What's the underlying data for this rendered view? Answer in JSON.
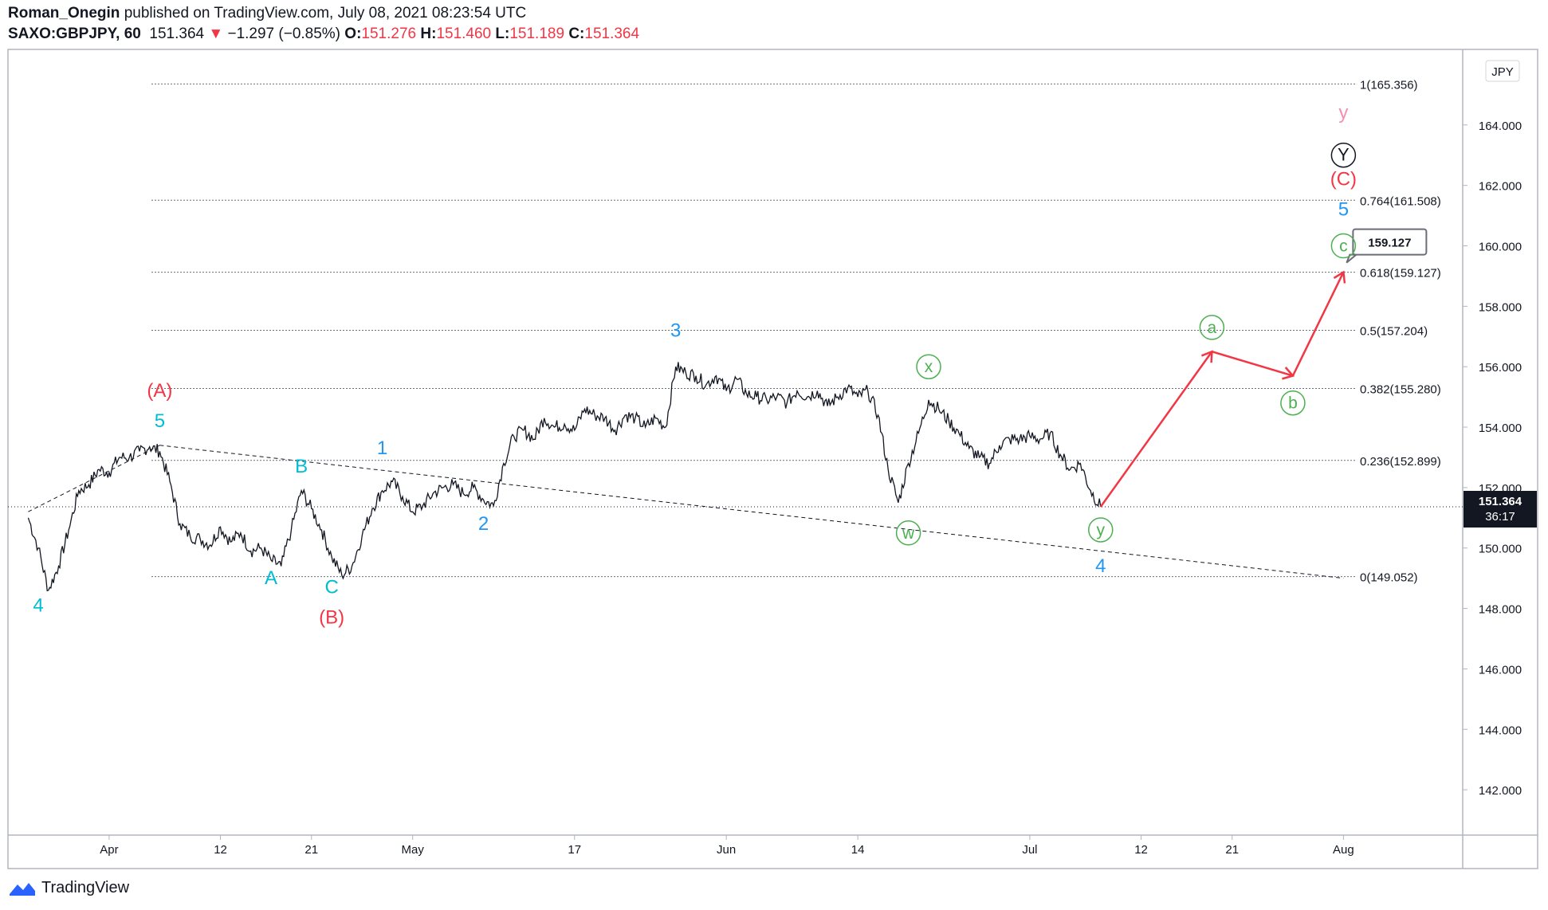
{
  "header": {
    "author": "Roman_Onegin",
    "published_text": "published on TradingView.com, July 08, 2021 08:23:54 UTC",
    "symbol": "SAXO:GBPJPY, 60",
    "last": "151.364",
    "change_arrow": "▼",
    "change": "−1.297 (−0.85%)",
    "o_label": "O:",
    "o_value": "151.276",
    "h_label": "H:",
    "h_value": "151.460",
    "l_label": "L:",
    "l_value": "151.189",
    "c_label": "C:",
    "c_value": "151.364"
  },
  "footer": {
    "brand": "TradingView"
  },
  "colors": {
    "red": "#f23645",
    "blue": "#2196f3",
    "teal": "#00bcd4",
    "green": "#4caf50",
    "pink": "#f48fb1",
    "price": "#131722"
  },
  "chart_data": {
    "type": "line",
    "currency": "JPY",
    "ylim": [
      140.5,
      166.5
    ],
    "yticks": [
      "142.000",
      "144.000",
      "146.000",
      "148.000",
      "150.000",
      "152.000",
      "154.000",
      "156.000",
      "158.000",
      "160.000",
      "162.000",
      "164.000"
    ],
    "xticks": [
      "Apr",
      "12",
      "21",
      "May",
      "17",
      "Jun",
      "14",
      "Jul",
      "12",
      "21",
      "Aug"
    ],
    "last_price_label": "151.364",
    "countdown_label": "36:17",
    "price_path": [
      [
        "2021-03-24",
        151.0
      ],
      [
        "2021-03-25",
        150.0
      ],
      [
        "2021-03-26",
        148.6
      ],
      [
        "2021-03-27",
        149.4
      ],
      [
        "2021-03-28",
        150.6
      ],
      [
        "2021-03-29",
        151.9
      ],
      [
        "2021-03-30",
        152.1
      ],
      [
        "2021-03-31",
        152.6
      ],
      [
        "2021-04-01",
        152.5
      ],
      [
        "2021-04-02",
        153.0
      ],
      [
        "2021-04-03",
        153.0
      ],
      [
        "2021-04-04",
        153.2
      ],
      [
        "2021-04-05",
        153.35
      ],
      [
        "2021-04-06",
        153.2
      ],
      [
        "2021-04-07",
        152.2
      ],
      [
        "2021-04-08",
        150.8
      ],
      [
        "2021-04-09",
        150.4
      ],
      [
        "2021-04-10",
        150.3
      ],
      [
        "2021-04-11",
        150.1
      ],
      [
        "2021-04-12",
        150.7
      ],
      [
        "2021-04-13",
        150.2
      ],
      [
        "2021-04-14",
        150.5
      ],
      [
        "2021-04-15",
        149.9
      ],
      [
        "2021-04-16",
        150.0
      ],
      [
        "2021-04-17",
        149.6
      ],
      [
        "2021-04-18",
        149.4
      ],
      [
        "2021-04-19",
        150.6
      ],
      [
        "2021-04-20",
        151.9
      ],
      [
        "2021-04-21",
        151.3
      ],
      [
        "2021-04-22",
        150.6
      ],
      [
        "2021-04-23",
        149.7
      ],
      [
        "2021-04-24",
        149.1
      ],
      [
        "2021-04-25",
        149.4
      ],
      [
        "2021-04-26",
        150.4
      ],
      [
        "2021-04-27",
        151.3
      ],
      [
        "2021-04-28",
        151.9
      ],
      [
        "2021-04-29",
        152.2
      ],
      [
        "2021-04-30",
        151.7
      ],
      [
        "2021-05-01",
        151.2
      ],
      [
        "2021-05-02",
        151.4
      ],
      [
        "2021-05-03",
        151.8
      ],
      [
        "2021-05-04",
        152.0
      ],
      [
        "2021-05-05",
        152.1
      ],
      [
        "2021-05-06",
        151.8
      ],
      [
        "2021-05-07",
        152.0
      ],
      [
        "2021-05-08",
        151.6
      ],
      [
        "2021-05-09",
        151.4
      ],
      [
        "2021-05-10",
        152.8
      ],
      [
        "2021-05-11",
        153.7
      ],
      [
        "2021-05-12",
        153.9
      ],
      [
        "2021-05-13",
        153.6
      ],
      [
        "2021-05-14",
        154.3
      ],
      [
        "2021-05-15",
        154.0
      ],
      [
        "2021-05-16",
        154.1
      ],
      [
        "2021-05-17",
        153.9
      ],
      [
        "2021-05-18",
        154.6
      ],
      [
        "2021-05-19",
        154.4
      ],
      [
        "2021-05-20",
        154.3
      ],
      [
        "2021-05-21",
        153.9
      ],
      [
        "2021-05-22",
        154.4
      ],
      [
        "2021-05-23",
        154.3
      ],
      [
        "2021-05-24",
        154.0
      ],
      [
        "2021-05-25",
        154.3
      ],
      [
        "2021-05-26",
        154.0
      ],
      [
        "2021-05-27",
        156.0
      ],
      [
        "2021-05-28",
        155.8
      ],
      [
        "2021-05-29",
        155.7
      ],
      [
        "2021-05-30",
        155.4
      ],
      [
        "2021-05-31",
        155.7
      ],
      [
        "2021-06-01",
        155.2
      ],
      [
        "2021-06-02",
        155.6
      ],
      [
        "2021-06-03",
        155.1
      ],
      [
        "2021-06-04",
        155.0
      ],
      [
        "2021-06-05",
        154.9
      ],
      [
        "2021-06-06",
        155.0
      ],
      [
        "2021-06-07",
        154.8
      ],
      [
        "2021-06-08",
        155.2
      ],
      [
        "2021-06-09",
        155.0
      ],
      [
        "2021-06-10",
        155.2
      ],
      [
        "2021-06-11",
        154.7
      ],
      [
        "2021-06-12",
        155.0
      ],
      [
        "2021-06-13",
        155.3
      ],
      [
        "2021-06-14",
        155.0
      ],
      [
        "2021-06-15",
        155.2
      ],
      [
        "2021-06-16",
        154.4
      ],
      [
        "2021-06-17",
        152.6
      ],
      [
        "2021-06-18",
        151.5
      ],
      [
        "2021-06-19",
        152.8
      ],
      [
        "2021-06-20",
        153.8
      ],
      [
        "2021-06-21",
        154.9
      ],
      [
        "2021-06-22",
        154.6
      ],
      [
        "2021-06-23",
        154.2
      ],
      [
        "2021-06-24",
        153.8
      ],
      [
        "2021-06-25",
        153.3
      ],
      [
        "2021-06-26",
        153.0
      ],
      [
        "2021-06-27",
        152.8
      ],
      [
        "2021-06-28",
        153.4
      ],
      [
        "2021-06-29",
        153.6
      ],
      [
        "2021-06-30",
        153.6
      ],
      [
        "2021-07-01",
        153.7
      ],
      [
        "2021-07-02",
        153.6
      ],
      [
        "2021-07-03",
        153.8
      ],
      [
        "2021-07-04",
        153.1
      ],
      [
        "2021-07-05",
        152.6
      ],
      [
        "2021-07-06",
        152.8
      ],
      [
        "2021-07-07",
        151.9
      ],
      [
        "2021-07-08",
        151.364
      ]
    ],
    "projection": [
      [
        "2021-07-08",
        151.364
      ],
      [
        "2021-07-19",
        156.5
      ],
      [
        "2021-07-27",
        155.7
      ],
      [
        "2021-08-01",
        159.127
      ]
    ],
    "projection_label": "159.127",
    "trendlines": [
      {
        "from": [
          "2021-03-24",
          151.2
        ],
        "to": [
          "2021-04-06",
          153.4
        ]
      },
      {
        "from": [
          "2021-04-06",
          153.4
        ],
        "to": [
          "2021-08-01",
          149.0
        ]
      }
    ],
    "fib_levels": [
      {
        "label": "1(165.356)",
        "value": 165.356
      },
      {
        "label": "0.764(161.508)",
        "value": 161.508
      },
      {
        "label": "0.618(159.127)",
        "value": 159.127
      },
      {
        "label": "0.5(157.204)",
        "value": 157.204
      },
      {
        "label": "0.382(155.280)",
        "value": 155.28
      },
      {
        "label": "0.236(152.899)",
        "value": 152.899
      },
      {
        "label": "0(149.052)",
        "value": 149.052
      }
    ],
    "wave_labels": [
      {
        "text": "4",
        "date": "2021-03-25",
        "price": 147.9,
        "color": "teal"
      },
      {
        "text": "(A)",
        "date": "2021-04-06",
        "price": 155.0,
        "color": "red"
      },
      {
        "text": "5",
        "date": "2021-04-06",
        "price": 154.0,
        "color": "teal"
      },
      {
        "text": "B",
        "date": "2021-04-20",
        "price": 152.5,
        "color": "teal"
      },
      {
        "text": "A",
        "date": "2021-04-17",
        "price": 148.8,
        "color": "teal"
      },
      {
        "text": "C",
        "date": "2021-04-23",
        "price": 148.5,
        "color": "teal"
      },
      {
        "text": "(B)",
        "date": "2021-04-23",
        "price": 147.5,
        "color": "red"
      },
      {
        "text": "1",
        "date": "2021-04-28",
        "price": 153.1,
        "color": "blue"
      },
      {
        "text": "2",
        "date": "2021-05-08",
        "price": 150.6,
        "color": "blue"
      },
      {
        "text": "3",
        "date": "2021-05-27",
        "price": 157.0,
        "color": "blue"
      },
      {
        "text": "4",
        "date": "2021-07-08",
        "price": 149.2,
        "color": "blue"
      },
      {
        "text": "5",
        "date": "2021-08-01",
        "price": 161.0,
        "color": "blue"
      },
      {
        "text": "(C)",
        "date": "2021-08-01",
        "price": 162.0,
        "color": "red"
      },
      {
        "text": "y",
        "date": "2021-08-01",
        "price": 164.2,
        "color": "pink"
      }
    ],
    "circled_labels": [
      {
        "text": "x",
        "date": "2021-06-21",
        "price": 156.0,
        "color": "green"
      },
      {
        "text": "w",
        "date": "2021-06-19",
        "price": 150.5,
        "color": "green"
      },
      {
        "text": "y",
        "date": "2021-07-08",
        "price": 150.6,
        "color": "green"
      },
      {
        "text": "a",
        "date": "2021-07-19",
        "price": 157.3,
        "color": "green"
      },
      {
        "text": "b",
        "date": "2021-07-27",
        "price": 154.8,
        "color": "green"
      },
      {
        "text": "c",
        "date": "2021-08-01",
        "price": 160.0,
        "color": "green"
      },
      {
        "text": "Y",
        "date": "2021-08-01",
        "price": 163.0,
        "color": "black"
      }
    ]
  }
}
